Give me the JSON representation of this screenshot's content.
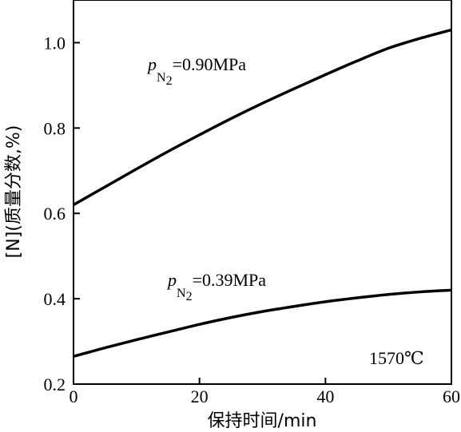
{
  "chart_data": {
    "type": "line",
    "xlabel": "保持时间/min",
    "ylabel": "[N](质量分数,%)",
    "xlim": [
      0,
      60
    ],
    "ylim": [
      0.2,
      1.1
    ],
    "x_ticks": [
      "0",
      "20",
      "40",
      "60"
    ],
    "y_ticks": [
      "0.2",
      "0.4",
      "0.6",
      "0.8",
      "1.0"
    ],
    "grid": false,
    "annotation": "1570℃",
    "series": [
      {
        "label_prefix": "p",
        "label_sub": "N",
        "label_subsub": "2",
        "label_value": "=0.90MPa",
        "x": [
          0,
          5,
          10,
          15,
          20,
          25,
          30,
          35,
          40,
          45,
          50,
          55,
          60
        ],
        "y": [
          0.62,
          0.662,
          0.704,
          0.745,
          0.784,
          0.822,
          0.858,
          0.892,
          0.925,
          0.957,
          0.987,
          1.01,
          1.03
        ]
      },
      {
        "label_prefix": "p",
        "label_sub": "N",
        "label_subsub": "2",
        "label_value": "=0.39MPa",
        "x": [
          0,
          5,
          10,
          15,
          20,
          25,
          30,
          35,
          40,
          45,
          50,
          55,
          60
        ],
        "y": [
          0.265,
          0.285,
          0.304,
          0.322,
          0.34,
          0.356,
          0.37,
          0.382,
          0.393,
          0.402,
          0.41,
          0.416,
          0.42
        ]
      }
    ]
  }
}
